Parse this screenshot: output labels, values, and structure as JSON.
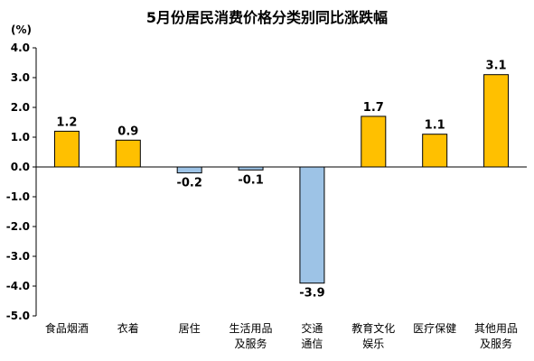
{
  "chart_data": {
    "type": "bar",
    "title": "5月份居民消费价格分类别同比涨跌幅",
    "ylabel": "(%)",
    "ylim": [
      -5.0,
      4.0
    ],
    "yticks": [
      "4.0",
      "3.0",
      "2.0",
      "1.0",
      "0.0",
      "-1.0",
      "-2.0",
      "-3.0",
      "-4.0",
      "-5.0"
    ],
    "categories": [
      [
        "食品烟酒"
      ],
      [
        "衣着"
      ],
      [
        "居住"
      ],
      [
        "生活用品",
        "及服务"
      ],
      [
        "交通",
        "通信"
      ],
      [
        "教育文化",
        "娱乐"
      ],
      [
        "医疗保健"
      ],
      [
        "其他用品",
        "及服务"
      ]
    ],
    "values": [
      1.2,
      0.9,
      -0.2,
      -0.1,
      -3.9,
      1.7,
      1.1,
      3.1
    ],
    "value_labels": [
      "1.2",
      "0.9",
      "-0.2",
      "-0.1",
      "-3.9",
      "1.7",
      "1.1",
      "3.1"
    ],
    "grid": false,
    "colors": {
      "positive": "#FFC000",
      "negative": "#9DC3E6",
      "outline": "#000000"
    }
  }
}
